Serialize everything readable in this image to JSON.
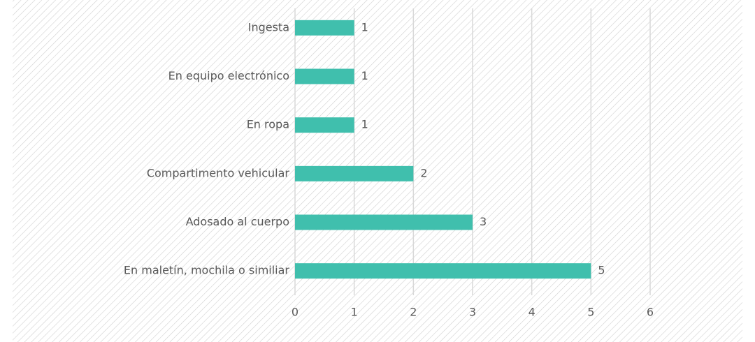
{
  "chart_data": {
    "type": "bar",
    "orientation": "horizontal",
    "categories": [
      "Ingesta",
      "En equipo electrónico",
      "En ropa",
      "Compartimento vehicular",
      "Adosado al cuerpo",
      "En maletín, mochila o similiar"
    ],
    "values": [
      1,
      1,
      1,
      2,
      3,
      5
    ],
    "color": "#40bfad",
    "xlim": [
      0,
      6
    ],
    "xticks": [
      0,
      1,
      2,
      3,
      4,
      5,
      6
    ],
    "grid": true
  }
}
